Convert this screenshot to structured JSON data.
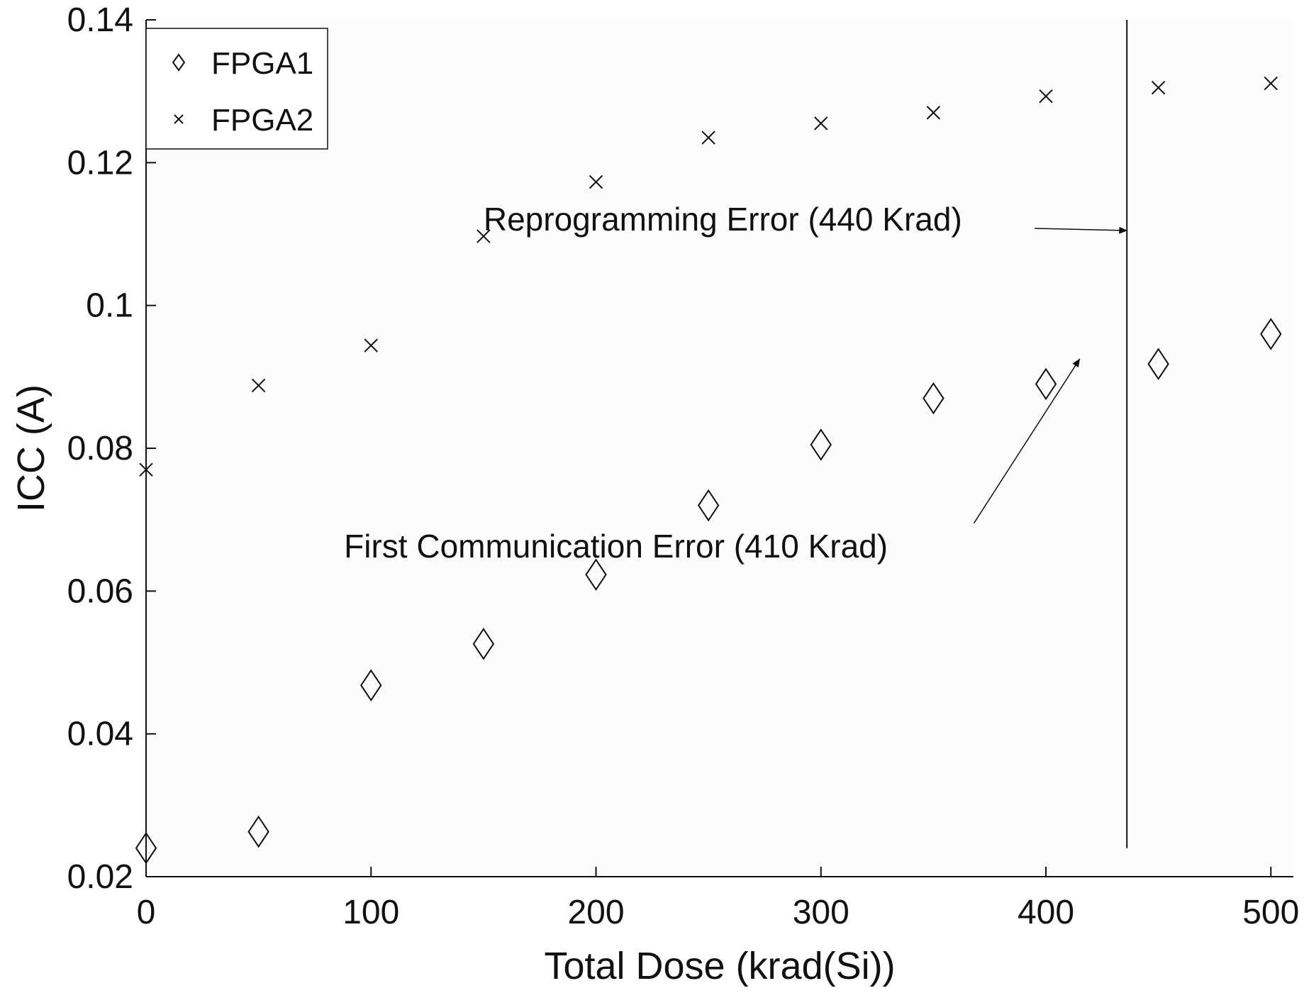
{
  "chart_data": {
    "type": "scatter",
    "title": "",
    "xlabel": "Total Dose (krad(Si))",
    "ylabel": "ICC (A)",
    "xlim": [
      0,
      510
    ],
    "ylim": [
      0.02,
      0.14
    ],
    "xticks": [
      0,
      100,
      200,
      300,
      400,
      500
    ],
    "xtick_labels": [
      "0",
      "100",
      "200",
      "300",
      "400",
      "500"
    ],
    "yticks": [
      0.02,
      0.04,
      0.06,
      0.08,
      0.1,
      0.12,
      0.14
    ],
    "ytick_labels": [
      "0.02",
      "0.04",
      "0.06",
      "0.08",
      "0.1",
      "0.12",
      "0.14"
    ],
    "grid": false,
    "legend_position": "top-left",
    "series": [
      {
        "name": "FPGA1",
        "marker": "diamond",
        "x": [
          0,
          50,
          100,
          150,
          200,
          250,
          300,
          350,
          400,
          450,
          500
        ],
        "y": [
          0.024,
          0.0263,
          0.0468,
          0.0526,
          0.0623,
          0.072,
          0.0805,
          0.087,
          0.089,
          0.0918,
          0.096
        ]
      },
      {
        "name": "FPGA2",
        "marker": "x",
        "x": [
          0,
          50,
          100,
          150,
          200,
          250,
          300,
          350,
          400,
          450,
          500
        ],
        "y": [
          0.077,
          0.0888,
          0.0944,
          0.1097,
          0.1173,
          0.1235,
          0.1255,
          0.127,
          0.1293,
          0.1305,
          0.1311
        ]
      }
    ],
    "vertical_line": {
      "x": 436,
      "y_range": [
        0.024,
        0.14
      ]
    },
    "annotations": [
      {
        "text": "Reprogramming Error (440 Krad)",
        "anchor": {
          "x": 150,
          "y": 0.1105
        },
        "arrow_from": {
          "x": 395,
          "y": 0.1108
        },
        "arrow_to": {
          "x": 436,
          "y": 0.1105
        }
      },
      {
        "text": "First Communication Error (410 Krad)",
        "anchor": {
          "x": 88,
          "y": 0.0647
        },
        "arrow_from": {
          "x": 368,
          "y": 0.0695
        },
        "arrow_to": {
          "x": 415,
          "y": 0.0925
        }
      }
    ]
  }
}
